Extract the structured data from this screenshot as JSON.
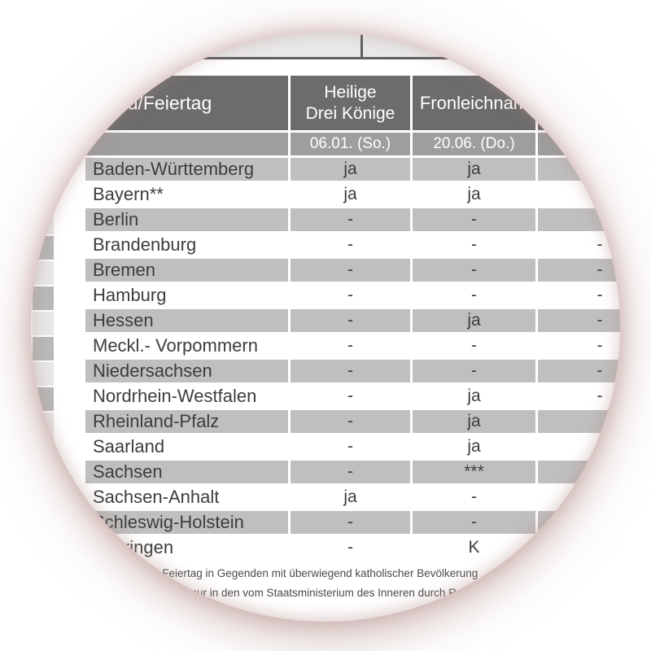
{
  "table": {
    "header": {
      "state_column": "Bundesland/Feiertag",
      "holiday1_line1": "Heilige",
      "holiday1_line2": "Drei Könige",
      "holiday2": "Fronleichnam",
      "holiday3": ""
    },
    "date_row": {
      "state": "",
      "holiday1_date": "06.01. (So.)",
      "holiday2_date": "20.06. (Do.)",
      "holiday3_date": ""
    },
    "rows": [
      {
        "state": "Baden-Württemberg",
        "heilige_drei_koenige": "ja",
        "fronleichnam": "ja",
        "col4": ""
      },
      {
        "state": "Bayern**",
        "heilige_drei_koenige": "ja",
        "fronleichnam": "ja",
        "col4": ""
      },
      {
        "state": "Berlin",
        "heilige_drei_koenige": "-",
        "fronleichnam": "-",
        "col4": ""
      },
      {
        "state": "Brandenburg",
        "heilige_drei_koenige": "-",
        "fronleichnam": "-",
        "col4": "-"
      },
      {
        "state": "Bremen",
        "heilige_drei_koenige": "-",
        "fronleichnam": "-",
        "col4": "-"
      },
      {
        "state": "Hamburg",
        "heilige_drei_koenige": "-",
        "fronleichnam": "-",
        "col4": "-"
      },
      {
        "state": "Hessen",
        "heilige_drei_koenige": "-",
        "fronleichnam": "ja",
        "col4": "-"
      },
      {
        "state": "Meckl.- Vorpommern",
        "heilige_drei_koenige": "-",
        "fronleichnam": "-",
        "col4": "-"
      },
      {
        "state": "Niedersachsen",
        "heilige_drei_koenige": "-",
        "fronleichnam": "-",
        "col4": "-"
      },
      {
        "state": "Nordrhein-Westfalen",
        "heilige_drei_koenige": "-",
        "fronleichnam": "ja",
        "col4": "-"
      },
      {
        "state": "Rheinland-Pfalz",
        "heilige_drei_koenige": "-",
        "fronleichnam": "ja",
        "col4": ""
      },
      {
        "state": "Saarland",
        "heilige_drei_koenige": "-",
        "fronleichnam": "ja",
        "col4": ""
      },
      {
        "state": "Sachsen",
        "heilige_drei_koenige": "-",
        "fronleichnam": "***",
        "col4": ""
      },
      {
        "state": "Sachsen-Anhalt",
        "heilige_drei_koenige": "ja",
        "fronleichnam": "-",
        "col4": ""
      },
      {
        "state": "Schleswig-Holstein",
        "heilige_drei_koenige": "-",
        "fronleichnam": "-",
        "col4": ""
      },
      {
        "state": "Thüringen",
        "heilige_drei_koenige": "-",
        "fronleichnam": "K",
        "col4": ""
      }
    ]
  },
  "footnotes": {
    "line1": "** Feiertag in Gegenden mit überwiegend katholischer Bevölkerung",
    "line2": "*** nur in den vom Staatsministerium des Inneren durch Rechtsverordnung bestimmten Gemeinden"
  },
  "colors": {
    "header_bg": "#6c6c6c",
    "subheader_bg": "#9e9e9e",
    "row_gray": "#bfbfbf",
    "row_white": "#ffffff",
    "text_dark": "#3d3d3d",
    "header_text": "#ffffff",
    "fragment_light": "#e9e9e9",
    "fragment_border": "#5f5f5f",
    "stripe_gray": "#b9b9b9",
    "stripe_light": "#e7e7e7",
    "lens_glow": "#c49a94"
  }
}
